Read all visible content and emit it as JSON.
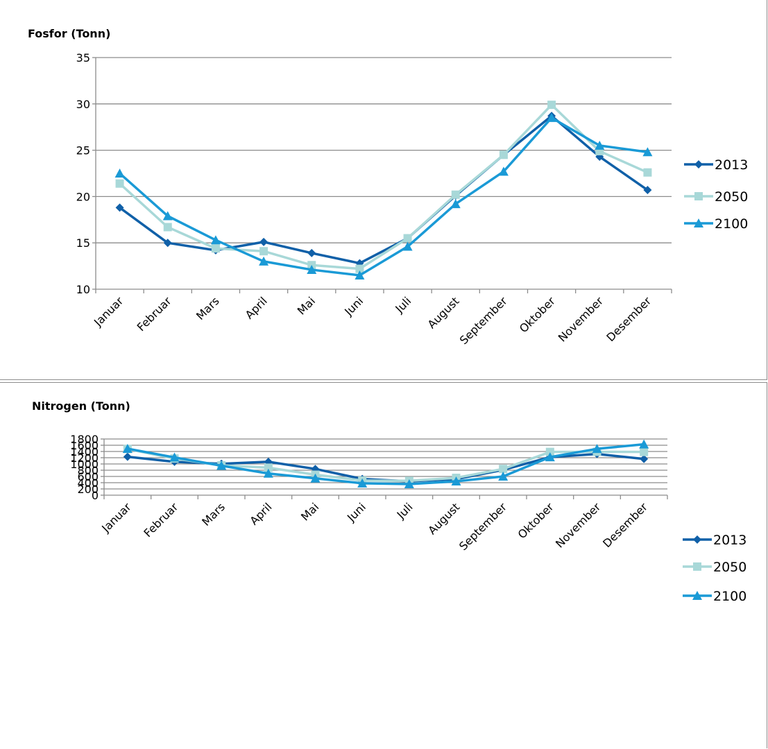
{
  "chart_data": [
    {
      "type": "line",
      "title": "Fosfor (Tonn)",
      "xlabel": "",
      "ylabel": "",
      "categories": [
        "Januar",
        "Februar",
        "Mars",
        "April",
        "Mai",
        "Juni",
        "Juli",
        "August",
        "September",
        "Oktober",
        "November",
        "Desember"
      ],
      "ylim": [
        10,
        35
      ],
      "yticks": [
        10,
        15,
        20,
        25,
        30,
        35
      ],
      "grid": true,
      "legend": "right",
      "series": [
        {
          "name": "2013",
          "color": "#1060a8",
          "marker": "diamond",
          "values": [
            18.8,
            15.0,
            14.2,
            15.1,
            13.9,
            12.8,
            15.5,
            20.1,
            24.5,
            28.7,
            24.3,
            20.7
          ]
        },
        {
          "name": "2050",
          "color": "#a8d8d8",
          "marker": "square",
          "values": [
            21.4,
            16.7,
            14.4,
            14.1,
            12.6,
            12.2,
            15.5,
            20.2,
            24.5,
            29.9,
            24.9,
            22.6
          ]
        },
        {
          "name": "2100",
          "color": "#1a9ad6",
          "marker": "triangle",
          "values": [
            22.5,
            17.9,
            15.3,
            13.0,
            12.1,
            11.5,
            14.6,
            19.2,
            22.7,
            28.5,
            25.5,
            24.8
          ]
        }
      ]
    },
    {
      "type": "line",
      "title": "Nitrogen (Tonn)",
      "xlabel": "",
      "ylabel": "",
      "categories": [
        "Januar",
        "Februar",
        "Mars",
        "April",
        "Mai",
        "Juni",
        "Juli",
        "August",
        "September",
        "Oktober",
        "November",
        "Desember"
      ],
      "ylim": [
        0,
        1800
      ],
      "yticks": [
        0,
        200,
        400,
        600,
        800,
        1000,
        1200,
        1400,
        1600,
        1800
      ],
      "grid": true,
      "legend": "right",
      "series": [
        {
          "name": "2013",
          "color": "#1060a8",
          "marker": "diamond",
          "values": [
            1230,
            1070,
            1005,
            1070,
            840,
            520,
            445,
            515,
            810,
            1220,
            1320,
            1160
          ]
        },
        {
          "name": "2050",
          "color": "#a8d8d8",
          "marker": "square",
          "values": [
            1480,
            1175,
            955,
            880,
            655,
            470,
            460,
            555,
            840,
            1385,
            1390,
            1385
          ]
        },
        {
          "name": "2100",
          "color": "#1a9ad6",
          "marker": "triangle",
          "values": [
            1490,
            1210,
            945,
            695,
            540,
            380,
            355,
            445,
            600,
            1220,
            1485,
            1630
          ]
        }
      ]
    }
  ]
}
